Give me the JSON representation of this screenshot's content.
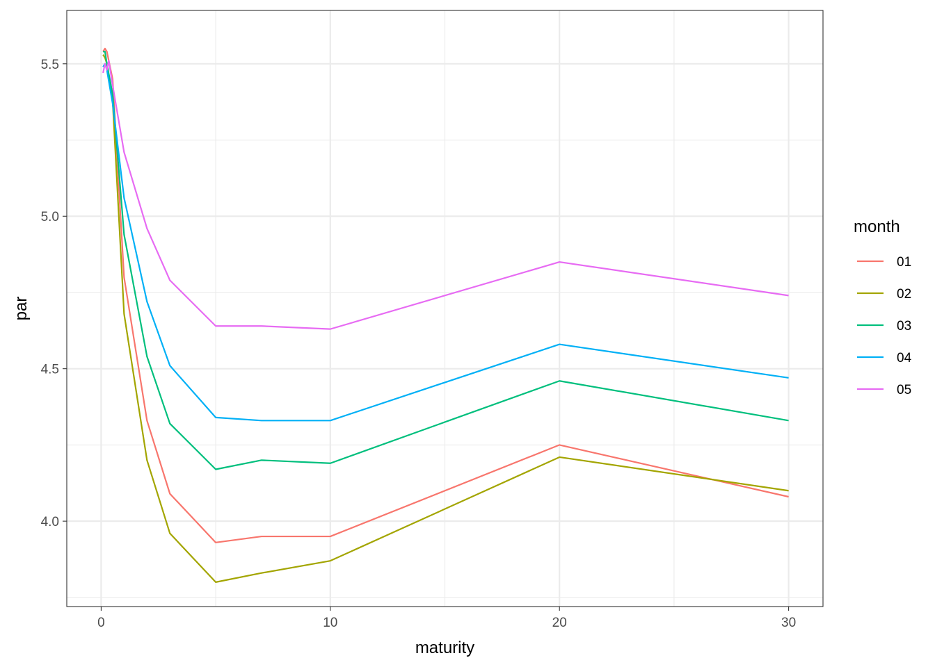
{
  "chart_data": {
    "type": "line",
    "xlabel": "maturity",
    "ylabel": "par",
    "xlim": [
      -1.5,
      31.5
    ],
    "ylim": [
      3.72,
      5.675
    ],
    "x_ticks": [
      0,
      10,
      20,
      30
    ],
    "x_tick_labels": [
      "0",
      "10",
      "20",
      "30"
    ],
    "x_minor_ticks": [
      5,
      15,
      25
    ],
    "y_ticks": [
      4.0,
      4.5,
      5.0,
      5.5
    ],
    "y_tick_labels": [
      "4.0",
      "4.5",
      "5.0",
      "5.5"
    ],
    "y_minor_ticks": [
      3.75,
      4.25,
      4.75,
      5.25
    ],
    "grid": true,
    "legend": {
      "title": "month",
      "position": "right"
    },
    "series": [
      {
        "name": "01",
        "color": "#F8766D",
        "points": [
          [
            0.083,
            5.54
          ],
          [
            0.167,
            5.55
          ],
          [
            0.25,
            5.54
          ],
          [
            0.5,
            5.45
          ],
          [
            1,
            4.8
          ],
          [
            2,
            4.33
          ],
          [
            3,
            4.09
          ],
          [
            5,
            3.93
          ],
          [
            7,
            3.95
          ],
          [
            10,
            3.95
          ],
          [
            20,
            4.25
          ],
          [
            30,
            4.08
          ]
        ]
      },
      {
        "name": "02",
        "color": "#A3A500",
        "points": [
          [
            0.083,
            5.53
          ],
          [
            0.167,
            5.52
          ],
          [
            0.25,
            5.5
          ],
          [
            0.5,
            5.38
          ],
          [
            1,
            4.68
          ],
          [
            2,
            4.2
          ],
          [
            3,
            3.96
          ],
          [
            5,
            3.8
          ],
          [
            7,
            3.83
          ],
          [
            10,
            3.87
          ],
          [
            20,
            4.21
          ],
          [
            30,
            4.1
          ]
        ]
      },
      {
        "name": "03",
        "color": "#00BF7D",
        "points": [
          [
            0.083,
            5.54
          ],
          [
            0.167,
            5.54
          ],
          [
            0.25,
            5.5
          ],
          [
            0.5,
            5.4
          ],
          [
            1,
            4.94
          ],
          [
            2,
            4.54
          ],
          [
            3,
            4.32
          ],
          [
            5,
            4.17
          ],
          [
            7,
            4.2
          ],
          [
            10,
            4.19
          ],
          [
            20,
            4.46
          ],
          [
            30,
            4.33
          ]
        ]
      },
      {
        "name": "04",
        "color": "#00B0F6",
        "points": [
          [
            0.083,
            5.49
          ],
          [
            0.167,
            5.5
          ],
          [
            0.25,
            5.48
          ],
          [
            0.5,
            5.37
          ],
          [
            1,
            5.06
          ],
          [
            2,
            4.72
          ],
          [
            3,
            4.51
          ],
          [
            5,
            4.34
          ],
          [
            7,
            4.33
          ],
          [
            10,
            4.33
          ],
          [
            20,
            4.58
          ],
          [
            30,
            4.47
          ]
        ]
      },
      {
        "name": "05",
        "color": "#E76BF3",
        "points": [
          [
            0.083,
            5.47
          ],
          [
            0.167,
            5.5
          ],
          [
            0.25,
            5.48
          ],
          [
            0.333,
            5.51
          ],
          [
            0.5,
            5.43
          ],
          [
            1,
            5.21
          ],
          [
            2,
            4.96
          ],
          [
            3,
            4.79
          ],
          [
            5,
            4.64
          ],
          [
            7,
            4.64
          ],
          [
            10,
            4.63
          ],
          [
            20,
            4.85
          ],
          [
            30,
            4.74
          ]
        ]
      }
    ]
  }
}
